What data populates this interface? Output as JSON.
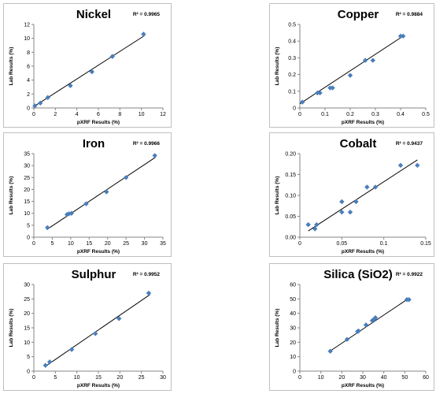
{
  "chart_data": [
    {
      "type": "scatter",
      "title": "Nickel",
      "r2": "R² = 0.9965",
      "xlabel": "pXRF Results (%)",
      "ylabel": "Lab Results (%)",
      "xlim": [
        0,
        12
      ],
      "ylim": [
        0,
        12
      ],
      "xticks": [
        0,
        2,
        4,
        6,
        8,
        10,
        12
      ],
      "yticks": [
        0,
        2,
        4,
        6,
        8,
        10,
        12
      ],
      "trendline": [
        [
          0,
          0.2
        ],
        [
          10.3,
          10.4
        ]
      ],
      "points": [
        [
          0.1,
          0.3
        ],
        [
          0.6,
          0.7
        ],
        [
          1.3,
          1.5
        ],
        [
          3.4,
          3.2
        ],
        [
          5.4,
          5.2
        ],
        [
          7.3,
          7.4
        ],
        [
          10.2,
          10.6
        ]
      ]
    },
    {
      "type": "scatter",
      "title": "Copper",
      "r2": "R² = 0.9884",
      "xlabel": "pXRF Results (%)",
      "ylabel": "Lab Results (%)",
      "xlim": [
        0,
        0.5
      ],
      "ylim": [
        0,
        0.5
      ],
      "xticks": [
        "0",
        "0.1",
        "0.2",
        "0.3",
        "0.4",
        "0.5"
      ],
      "yticks": [
        "0",
        "0.1",
        "0.2",
        "0.3",
        "0.4",
        "0.5"
      ],
      "trendline": [
        [
          0,
          0.025
        ],
        [
          0.41,
          0.43
        ]
      ],
      "points": [
        [
          0.01,
          0.035
        ],
        [
          0.07,
          0.09
        ],
        [
          0.08,
          0.09
        ],
        [
          0.12,
          0.12
        ],
        [
          0.13,
          0.12
        ],
        [
          0.2,
          0.195
        ],
        [
          0.26,
          0.285
        ],
        [
          0.29,
          0.285
        ],
        [
          0.4,
          0.43
        ],
        [
          0.41,
          0.43
        ]
      ]
    },
    {
      "type": "scatter",
      "title": "Iron",
      "r2": "R² = 0.9966",
      "xlabel": "pXRF Results (%)",
      "ylabel": "Lab Results (%)",
      "xlim": [
        0,
        35
      ],
      "ylim": [
        0,
        35
      ],
      "xticks": [
        0,
        5,
        10,
        15,
        20,
        25,
        30,
        35
      ],
      "yticks": [
        0,
        5,
        10,
        15,
        20,
        25,
        30,
        35
      ],
      "trendline": [
        [
          3.5,
          3.2
        ],
        [
          33,
          33.5
        ]
      ],
      "points": [
        [
          3.7,
          4.0
        ],
        [
          9.0,
          9.5
        ],
        [
          9.5,
          9.8
        ],
        [
          10.2,
          10.0
        ],
        [
          14.2,
          14.0
        ],
        [
          19.7,
          19.0
        ],
        [
          25.0,
          25.0
        ],
        [
          32.8,
          34.2
        ]
      ]
    },
    {
      "type": "scatter",
      "title": "Cobalt",
      "r2": "R² = 0.9437",
      "xlabel": "pXRF Results (%)",
      "ylabel": "Lab Results (%)",
      "xlim": [
        0,
        0.15
      ],
      "ylim": [
        0,
        0.2
      ],
      "xticks": [
        "0",
        "0.05",
        "0.1",
        "0.15"
      ],
      "yticks": [
        "0.00",
        "0.05",
        "0.10",
        "0.15",
        "0.20"
      ],
      "trendline": [
        [
          0.01,
          0.015
        ],
        [
          0.14,
          0.185
        ]
      ],
      "points": [
        [
          0.01,
          0.03
        ],
        [
          0.018,
          0.02
        ],
        [
          0.02,
          0.03
        ],
        [
          0.05,
          0.06
        ],
        [
          0.05,
          0.085
        ],
        [
          0.06,
          0.06
        ],
        [
          0.067,
          0.085
        ],
        [
          0.08,
          0.12
        ],
        [
          0.09,
          0.12
        ],
        [
          0.12,
          0.172
        ],
        [
          0.14,
          0.172
        ]
      ]
    },
    {
      "type": "scatter",
      "title": "Sulphur",
      "r2": "R² = 0.9952",
      "xlabel": "pXRF Results (%)",
      "ylabel": "Lab Results (%)",
      "xlim": [
        0,
        30
      ],
      "ylim": [
        0,
        30
      ],
      "xticks": [
        0,
        5,
        10,
        15,
        20,
        25,
        30
      ],
      "yticks": [
        0,
        5,
        10,
        15,
        20,
        25,
        30
      ],
      "trendline": [
        [
          3,
          2.0
        ],
        [
          27,
          26.5
        ]
      ],
      "points": [
        [
          2.7,
          2.0
        ],
        [
          3.7,
          3.2
        ],
        [
          8.8,
          7.5
        ],
        [
          14.3,
          13.0
        ],
        [
          19.8,
          18.2
        ],
        [
          26.7,
          27.0
        ]
      ]
    },
    {
      "type": "scatter",
      "title": "Silica (SiO2)",
      "r2": "R² = 0.9922",
      "xlabel": "pXRF Results (%)",
      "ylabel": "Lab Results (%)",
      "xlim": [
        0,
        60
      ],
      "ylim": [
        0,
        60
      ],
      "xticks": [
        0,
        10,
        20,
        30,
        40,
        50,
        60
      ],
      "yticks": [
        0,
        10,
        20,
        30,
        40,
        50,
        60
      ],
      "trendline": [
        [
          14,
          13.5
        ],
        [
          52,
          50.5
        ]
      ],
      "points": [
        [
          14.5,
          13.8
        ],
        [
          22.5,
          22.0
        ],
        [
          27.5,
          27.5
        ],
        [
          28.0,
          27.8
        ],
        [
          31.5,
          32.0
        ],
        [
          34.5,
          35.0
        ],
        [
          35.5,
          36.0
        ],
        [
          36.0,
          37.0
        ],
        [
          51.0,
          49.5
        ],
        [
          52.0,
          49.5
        ]
      ]
    }
  ],
  "colors": {
    "marker": "#4a7ebb",
    "trendline": "#000000",
    "axis": "#868686"
  }
}
